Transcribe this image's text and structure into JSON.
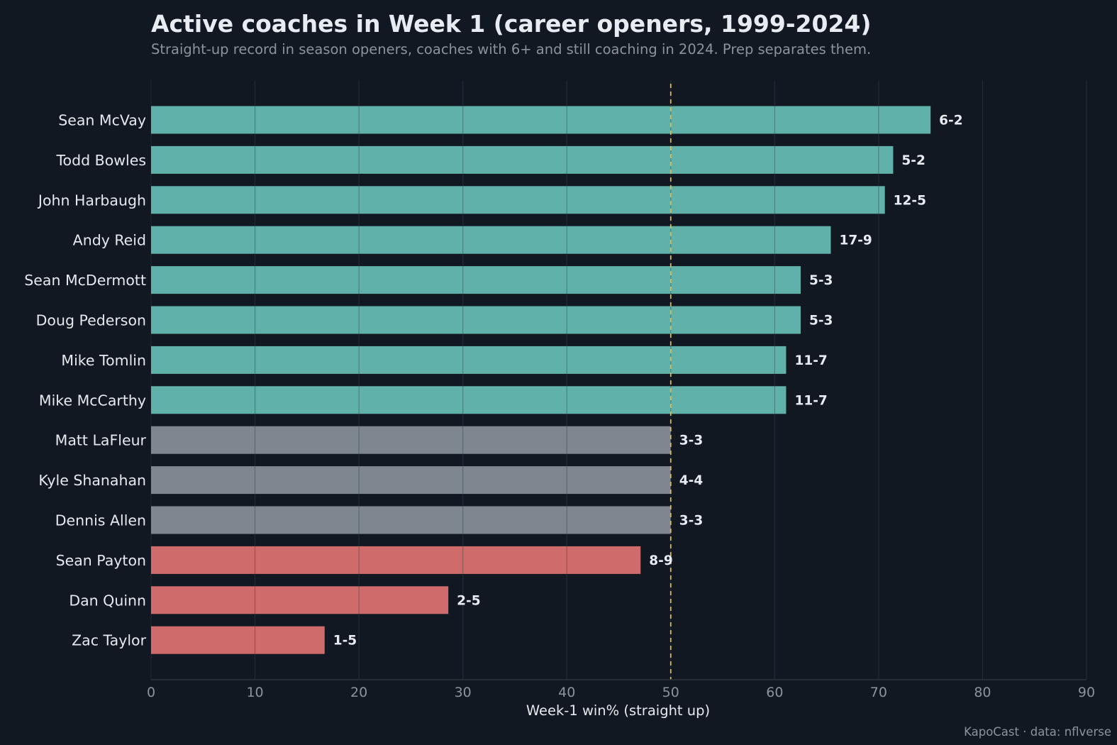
{
  "footer": {
    "credit": "KapoCast · data: nflverse"
  },
  "chart_data": {
    "type": "bar",
    "orientation": "horizontal",
    "title": "Active coaches in Week 1 (career openers, 1999-2024)",
    "subtitle": "Straight-up record in season openers, coaches with 6+ and still coaching in 2024. Prep separates them.",
    "xlabel": "Week-1 win% (straight up)",
    "ylabel": "",
    "xlim": [
      0,
      90
    ],
    "xticks": [
      0,
      10,
      20,
      30,
      40,
      50,
      60,
      70,
      80,
      90
    ],
    "grid": true,
    "reference_line": {
      "x": 50,
      "style": "dashed",
      "color": "#e3b54f"
    },
    "colors": {
      "above": "#5fb1a9",
      "even": "#7e878f",
      "below": "#cf6b6b"
    },
    "categories": [
      "Sean McVay",
      "Todd Bowles",
      "John Harbaugh",
      "Andy Reid",
      "Sean McDermott",
      "Doug Pederson",
      "Mike Tomlin",
      "Mike McCarthy",
      "Matt LaFleur",
      "Kyle Shanahan",
      "Dennis Allen",
      "Sean Payton",
      "Dan Quinn",
      "Zac Taylor"
    ],
    "values": [
      75.0,
      71.4,
      70.6,
      65.4,
      62.5,
      62.5,
      61.1,
      61.1,
      50.0,
      50.0,
      50.0,
      47.1,
      28.6,
      16.7
    ],
    "records": [
      "6-2",
      "5-2",
      "12-5",
      "17-9",
      "5-3",
      "5-3",
      "11-7",
      "11-7",
      "3-3",
      "4-4",
      "3-3",
      "8-9",
      "2-5",
      "1-5"
    ]
  }
}
